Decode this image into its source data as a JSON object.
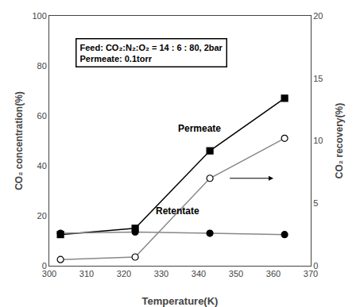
{
  "chart_data": {
    "type": "line",
    "xlabel": "Temperature(K)",
    "ylabel": "CO₂ concentration(%)",
    "y2label": "CO₂ recovery(%)",
    "x": [
      303,
      323,
      343,
      363
    ],
    "series": [
      {
        "values": [
          12.5,
          15.0,
          46.0,
          67.0
        ],
        "color": "black",
        "marker": "square"
      },
      {
        "values": [
          13.0,
          13.5,
          13.0,
          12.5
        ],
        "color": "#888888",
        "marker": "circle"
      },
      {
        "values": [
          0.5,
          0.7,
          7.0,
          10.2
        ],
        "color": "#888888",
        "marker": "circle-open",
        "axis": "y2"
      }
    ],
    "xlim": [
      300,
      370
    ],
    "xticks": [
      300,
      310,
      320,
      330,
      340,
      350,
      360,
      370
    ],
    "ylim": [
      0,
      100
    ],
    "yticks": [
      0,
      20,
      40,
      60,
      80,
      100
    ],
    "y2lim": [
      0,
      20
    ],
    "y2ticks": [
      0,
      5,
      10,
      15,
      20
    ],
    "grid": false,
    "annotations": [
      {
        "text": "Permeate",
        "x": 334,
        "y": 52
      },
      {
        "text": "Retentate",
        "x": 328,
        "y": 19
      },
      {
        "text": "Feed: CO₂:N₂:O₂ = 14 : 6 : 80, 2bar\nPermeate: 0.1torr",
        "box": true
      }
    ],
    "arrows": [
      {
        "from": [
          348,
          35
        ],
        "to": [
          360,
          35
        ]
      }
    ]
  }
}
